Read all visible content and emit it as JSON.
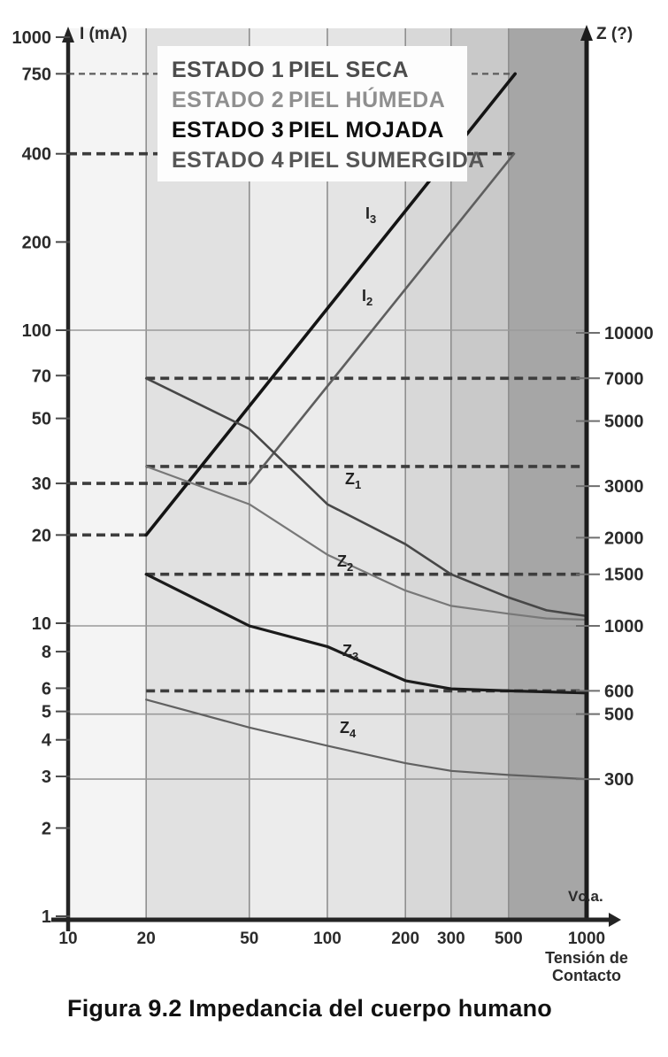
{
  "figure": {
    "caption": "Figura 9.2  Impedancia del cuerpo humano"
  },
  "legend": {
    "items": [
      {
        "estado": "ESTADO 1",
        "piel": "PIEL SECA",
        "color": "#4c4c4c"
      },
      {
        "estado": "ESTADO 2",
        "piel": "PIEL HÚMEDA",
        "color": "#8f8f8f"
      },
      {
        "estado": "ESTADO 3",
        "piel": "PIEL MOJADA",
        "color": "#0d0d0d"
      },
      {
        "estado": "ESTADO 4",
        "piel": "PIEL SUMERGIDA",
        "color": "#565656"
      }
    ]
  },
  "chart_data": {
    "type": "line",
    "title": "Figura 9.2  Impedancia del cuerpo humano",
    "x_axis": {
      "label_top": "Vc.a.",
      "label_bottom_lines": [
        "Tensión de",
        "Contacto"
      ],
      "scale": "log",
      "range": [
        10,
        1000
      ],
      "ticks": [
        10,
        20,
        50,
        100,
        200,
        300,
        500,
        1000
      ]
    },
    "left_axis": {
      "title": "I (mA)",
      "scale": "log",
      "range": [
        1,
        1000
      ],
      "ticks": [
        1000,
        750,
        400,
        200,
        100,
        70,
        50,
        30,
        20,
        10,
        8,
        6,
        5,
        4,
        3,
        2,
        1
      ]
    },
    "right_axis": {
      "title": "Z (?)",
      "scale": "log",
      "range": [
        100,
        10000
      ],
      "ticks": [
        10000,
        7000,
        5000,
        3000,
        2000,
        1500,
        1000,
        600,
        500,
        300
      ]
    },
    "grid": {
      "vertical_at": [
        20,
        50,
        100,
        200,
        300,
        500,
        1000
      ],
      "horizontal_solid": [
        {
          "scale": "I",
          "value": 100
        },
        {
          "scale": "Z",
          "value": 1000
        },
        {
          "scale": "Z",
          "value": 500
        },
        {
          "scale": "Z",
          "value": 300
        }
      ]
    },
    "guides_dashed": [
      {
        "scale": "I",
        "value": 750,
        "v1": 10,
        "v2": 530,
        "weight": "thin"
      },
      {
        "scale": "I",
        "value": 400,
        "v1": 10,
        "v2": 525,
        "weight": "bold"
      },
      {
        "scale": "Z",
        "value": 7000,
        "v1": 20,
        "v2": 1000,
        "weight": "bold"
      },
      {
        "scale": "Z",
        "value": 3500,
        "v1": 20,
        "v2": 1000,
        "weight": "bold"
      },
      {
        "scale": "I",
        "value": 30,
        "v1": 10,
        "v2": 50,
        "weight": "bold"
      },
      {
        "scale": "I",
        "value": 20,
        "v1": 10,
        "v2": 20,
        "weight": "bold"
      },
      {
        "scale": "Z",
        "value": 1500,
        "v1": 20,
        "v2": 1000,
        "weight": "bold"
      },
      {
        "scale": "Z",
        "value": 600,
        "v1": 20,
        "v2": 1000,
        "weight": "bold"
      }
    ],
    "series": [
      {
        "id": "I3",
        "label_main": "I",
        "label_sub": "3",
        "unit": "mA",
        "scale": "I",
        "points": [
          [
            20,
            20
          ],
          [
            530,
            750
          ]
        ]
      },
      {
        "id": "I2",
        "label_main": "I",
        "label_sub": "2",
        "unit": "mA",
        "scale": "I",
        "points": [
          [
            50,
            30
          ],
          [
            525,
            400
          ]
        ]
      },
      {
        "id": "Z1",
        "label_main": "Z",
        "label_sub": "1",
        "unit": "ohm",
        "scale": "Z",
        "points": [
          [
            20,
            7000
          ],
          [
            50,
            4700
          ],
          [
            100,
            2600
          ],
          [
            200,
            1900
          ],
          [
            300,
            1500
          ],
          [
            500,
            1250
          ],
          [
            700,
            1130
          ],
          [
            1000,
            1080
          ]
        ]
      },
      {
        "id": "Z2",
        "label_main": "Z",
        "label_sub": "2",
        "unit": "ohm",
        "scale": "Z",
        "points": [
          [
            20,
            3500
          ],
          [
            50,
            2600
          ],
          [
            100,
            1750
          ],
          [
            200,
            1320
          ],
          [
            300,
            1170
          ],
          [
            500,
            1100
          ],
          [
            700,
            1060
          ],
          [
            1000,
            1050
          ]
        ]
      },
      {
        "id": "Z3",
        "label_main": "Z",
        "label_sub": "3",
        "unit": "ohm",
        "scale": "Z",
        "points": [
          [
            20,
            1500
          ],
          [
            50,
            1000
          ],
          [
            100,
            850
          ],
          [
            200,
            650
          ],
          [
            300,
            610
          ],
          [
            500,
            600
          ],
          [
            1000,
            590
          ]
        ]
      },
      {
        "id": "Z4",
        "label_main": "Z",
        "label_sub": "4",
        "unit": "ohm",
        "scale": "Z",
        "points": [
          [
            20,
            560
          ],
          [
            50,
            450
          ],
          [
            100,
            390
          ],
          [
            200,
            340
          ],
          [
            300,
            320
          ],
          [
            500,
            310
          ],
          [
            1000,
            300
          ]
        ]
      }
    ]
  }
}
